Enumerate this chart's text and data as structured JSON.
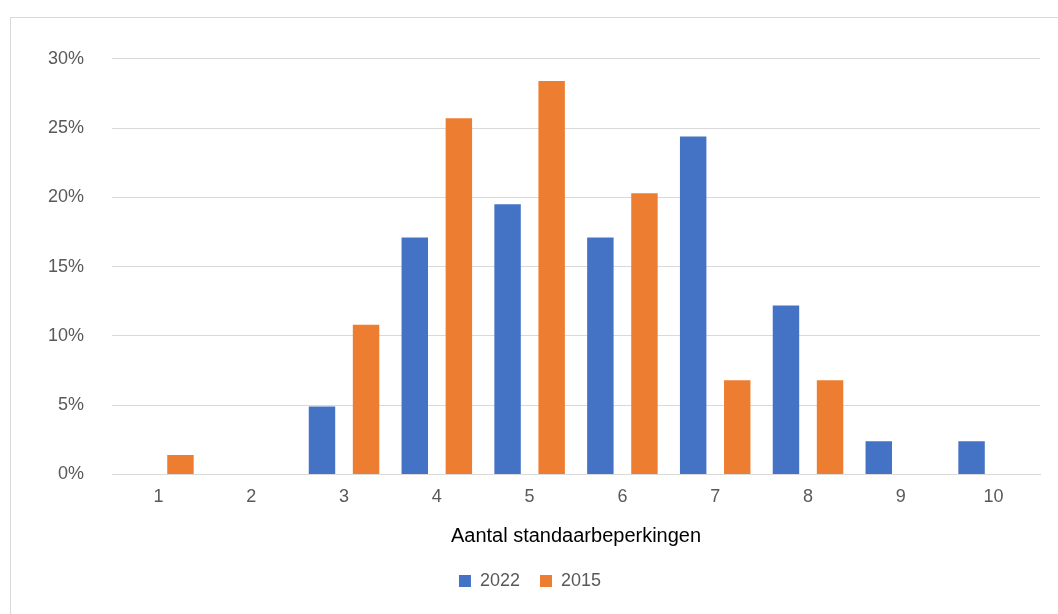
{
  "chart_data": {
    "type": "bar",
    "xlabel": "Aantal standaarbeperkingen",
    "categories": [
      "1",
      "2",
      "3",
      "4",
      "5",
      "6",
      "7",
      "8",
      "9",
      "10"
    ],
    "series": [
      {
        "name": "2022",
        "color": "#4472c4",
        "values": [
          0,
          0,
          4.9,
          17.1,
          19.5,
          17.1,
          24.4,
          12.2,
          2.4,
          2.4
        ]
      },
      {
        "name": "2015",
        "color": "#ed7d31",
        "values": [
          1.4,
          0,
          10.8,
          25.7,
          28.4,
          20.3,
          6.8,
          6.8,
          0,
          0
        ]
      }
    ],
    "ylim": [
      0,
      30
    ],
    "yticks": [
      {
        "value": 0,
        "label": "0%"
      },
      {
        "value": 5,
        "label": "5%"
      },
      {
        "value": 10,
        "label": "10%"
      },
      {
        "value": 15,
        "label": "15%"
      },
      {
        "value": 20,
        "label": "20%"
      },
      {
        "value": 25,
        "label": "25%"
      },
      {
        "value": 30,
        "label": "30%"
      }
    ],
    "grid": "y",
    "legend": "bottom"
  }
}
